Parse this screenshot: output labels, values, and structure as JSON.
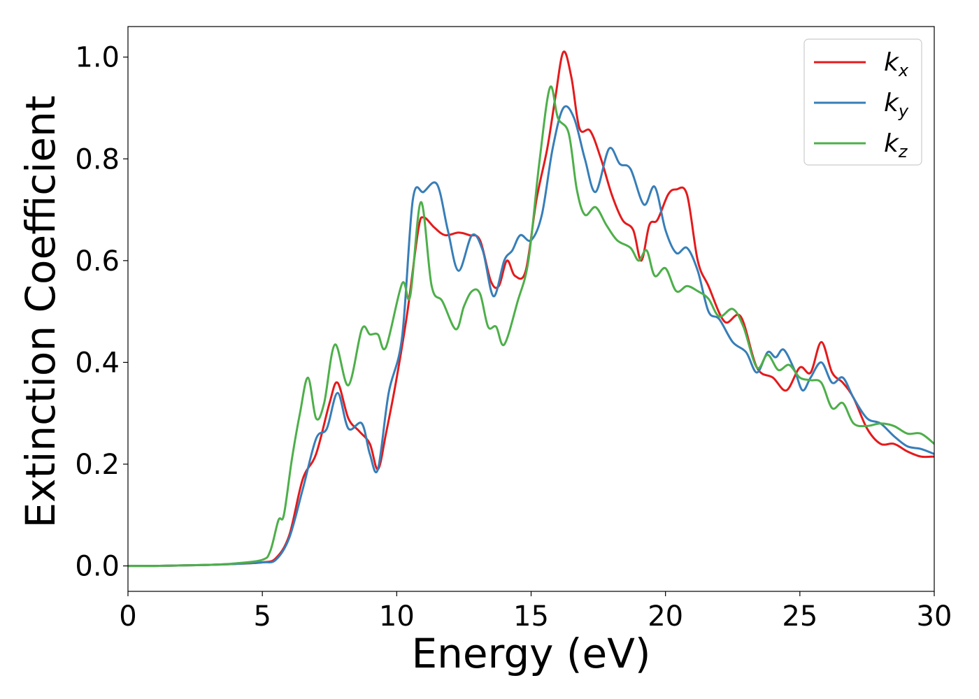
{
  "chart_data": {
    "type": "line",
    "title": "",
    "xlabel": "Energy (eV)",
    "ylabel": "Extinction Coefficient",
    "xlim": [
      0,
      30
    ],
    "ylim": [
      -0.05,
      1.06
    ],
    "xticks": [
      0,
      5,
      10,
      15,
      20,
      25,
      30
    ],
    "xtick_labels": [
      "0",
      "5",
      "10",
      "15",
      "20",
      "25",
      "30"
    ],
    "yticks": [
      0.0,
      0.2,
      0.4,
      0.6,
      0.8,
      1.0
    ],
    "ytick_labels": [
      "0.0",
      "0.2",
      "0.4",
      "0.6",
      "0.8",
      "1.0"
    ],
    "grid": false,
    "legend_position": "top-right",
    "series": [
      {
        "name": "k_x",
        "label_main": "k",
        "label_sub": "x",
        "color": "#e41a1c",
        "points": [
          [
            0,
            0
          ],
          [
            1,
            0
          ],
          [
            2,
            0.001
          ],
          [
            3,
            0.002
          ],
          [
            4,
            0.004
          ],
          [
            5,
            0.007
          ],
          [
            5.5,
            0.015
          ],
          [
            6,
            0.06
          ],
          [
            6.5,
            0.17
          ],
          [
            7,
            0.22
          ],
          [
            7.5,
            0.32
          ],
          [
            7.8,
            0.36
          ],
          [
            8.2,
            0.29
          ],
          [
            8.6,
            0.265
          ],
          [
            9,
            0.24
          ],
          [
            9.3,
            0.19
          ],
          [
            9.6,
            0.26
          ],
          [
            10,
            0.37
          ],
          [
            10.4,
            0.5
          ],
          [
            10.8,
            0.66
          ],
          [
            11,
            0.685
          ],
          [
            11.4,
            0.665
          ],
          [
            11.8,
            0.65
          ],
          [
            12.3,
            0.655
          ],
          [
            12.7,
            0.65
          ],
          [
            13.1,
            0.64
          ],
          [
            13.5,
            0.56
          ],
          [
            13.8,
            0.55
          ],
          [
            14.1,
            0.6
          ],
          [
            14.4,
            0.57
          ],
          [
            14.8,
            0.58
          ],
          [
            15.2,
            0.72
          ],
          [
            15.6,
            0.82
          ],
          [
            15.9,
            0.92
          ],
          [
            16.2,
            1.01
          ],
          [
            16.5,
            0.96
          ],
          [
            16.8,
            0.86
          ],
          [
            17.2,
            0.855
          ],
          [
            17.6,
            0.8
          ],
          [
            18,
            0.73
          ],
          [
            18.4,
            0.68
          ],
          [
            18.8,
            0.66
          ],
          [
            19.1,
            0.6
          ],
          [
            19.4,
            0.67
          ],
          [
            19.7,
            0.68
          ],
          [
            20.1,
            0.73
          ],
          [
            20.4,
            0.74
          ],
          [
            20.8,
            0.73
          ],
          [
            21.2,
            0.6
          ],
          [
            21.6,
            0.55
          ],
          [
            22.2,
            0.48
          ],
          [
            22.8,
            0.49
          ],
          [
            23.4,
            0.39
          ],
          [
            24,
            0.37
          ],
          [
            24.5,
            0.345
          ],
          [
            25,
            0.39
          ],
          [
            25.4,
            0.38
          ],
          [
            25.8,
            0.44
          ],
          [
            26.2,
            0.38
          ],
          [
            26.6,
            0.36
          ],
          [
            27,
            0.33
          ],
          [
            27.5,
            0.27
          ],
          [
            28,
            0.24
          ],
          [
            28.5,
            0.24
          ],
          [
            29,
            0.225
          ],
          [
            29.5,
            0.215
          ],
          [
            30,
            0.215
          ]
        ]
      },
      {
        "name": "k_y",
        "label_main": "k",
        "label_sub": "y",
        "color": "#377eb8",
        "points": [
          [
            0,
            0
          ],
          [
            1,
            0
          ],
          [
            2,
            0.001
          ],
          [
            3,
            0.002
          ],
          [
            4,
            0.004
          ],
          [
            5,
            0.007
          ],
          [
            5.5,
            0.012
          ],
          [
            6,
            0.055
          ],
          [
            6.5,
            0.15
          ],
          [
            7,
            0.25
          ],
          [
            7.4,
            0.27
          ],
          [
            7.8,
            0.34
          ],
          [
            8.2,
            0.27
          ],
          [
            8.7,
            0.28
          ],
          [
            9,
            0.22
          ],
          [
            9.3,
            0.19
          ],
          [
            9.7,
            0.34
          ],
          [
            10.2,
            0.45
          ],
          [
            10.6,
            0.72
          ],
          [
            11,
            0.735
          ],
          [
            11.5,
            0.75
          ],
          [
            11.9,
            0.66
          ],
          [
            12.3,
            0.58
          ],
          [
            12.8,
            0.65
          ],
          [
            13.2,
            0.62
          ],
          [
            13.6,
            0.53
          ],
          [
            14,
            0.6
          ],
          [
            14.3,
            0.62
          ],
          [
            14.6,
            0.65
          ],
          [
            15,
            0.64
          ],
          [
            15.4,
            0.69
          ],
          [
            15.8,
            0.82
          ],
          [
            16.2,
            0.9
          ],
          [
            16.6,
            0.88
          ],
          [
            17,
            0.8
          ],
          [
            17.4,
            0.735
          ],
          [
            17.9,
            0.82
          ],
          [
            18.3,
            0.79
          ],
          [
            18.7,
            0.78
          ],
          [
            19.2,
            0.71
          ],
          [
            19.6,
            0.745
          ],
          [
            20,
            0.66
          ],
          [
            20.4,
            0.615
          ],
          [
            20.8,
            0.625
          ],
          [
            21.2,
            0.58
          ],
          [
            21.6,
            0.5
          ],
          [
            22,
            0.485
          ],
          [
            22.5,
            0.44
          ],
          [
            23,
            0.42
          ],
          [
            23.4,
            0.38
          ],
          [
            23.8,
            0.42
          ],
          [
            24.1,
            0.41
          ],
          [
            24.4,
            0.425
          ],
          [
            24.8,
            0.385
          ],
          [
            25.1,
            0.345
          ],
          [
            25.4,
            0.37
          ],
          [
            25.8,
            0.4
          ],
          [
            26.2,
            0.36
          ],
          [
            26.6,
            0.37
          ],
          [
            27,
            0.33
          ],
          [
            27.5,
            0.29
          ],
          [
            28,
            0.28
          ],
          [
            28.5,
            0.255
          ],
          [
            29,
            0.235
          ],
          [
            29.5,
            0.23
          ],
          [
            30,
            0.22
          ]
        ]
      },
      {
        "name": "k_z",
        "label_main": "k",
        "label_sub": "z",
        "color": "#4daf4a",
        "points": [
          [
            0,
            0
          ],
          [
            1,
            0
          ],
          [
            2,
            0.001
          ],
          [
            3,
            0.002
          ],
          [
            4,
            0.005
          ],
          [
            5,
            0.012
          ],
          [
            5.3,
            0.03
          ],
          [
            5.6,
            0.09
          ],
          [
            5.8,
            0.1
          ],
          [
            6.1,
            0.21
          ],
          [
            6.4,
            0.3
          ],
          [
            6.7,
            0.37
          ],
          [
            7,
            0.29
          ],
          [
            7.3,
            0.32
          ],
          [
            7.7,
            0.435
          ],
          [
            8.2,
            0.355
          ],
          [
            8.7,
            0.465
          ],
          [
            9,
            0.455
          ],
          [
            9.3,
            0.455
          ],
          [
            9.6,
            0.43
          ],
          [
            10.2,
            0.555
          ],
          [
            10.5,
            0.53
          ],
          [
            10.9,
            0.715
          ],
          [
            11.3,
            0.55
          ],
          [
            11.7,
            0.52
          ],
          [
            12.2,
            0.465
          ],
          [
            12.5,
            0.51
          ],
          [
            12.8,
            0.54
          ],
          [
            13.1,
            0.535
          ],
          [
            13.4,
            0.47
          ],
          [
            13.7,
            0.47
          ],
          [
            14,
            0.435
          ],
          [
            14.5,
            0.52
          ],
          [
            14.9,
            0.6
          ],
          [
            15.3,
            0.79
          ],
          [
            15.7,
            0.94
          ],
          [
            16,
            0.88
          ],
          [
            16.4,
            0.85
          ],
          [
            16.7,
            0.74
          ],
          [
            17,
            0.69
          ],
          [
            17.4,
            0.705
          ],
          [
            17.8,
            0.67
          ],
          [
            18.2,
            0.64
          ],
          [
            18.7,
            0.625
          ],
          [
            19,
            0.6
          ],
          [
            19.3,
            0.62
          ],
          [
            19.6,
            0.57
          ],
          [
            20,
            0.585
          ],
          [
            20.4,
            0.54
          ],
          [
            20.8,
            0.55
          ],
          [
            21.2,
            0.54
          ],
          [
            21.6,
            0.525
          ],
          [
            22,
            0.49
          ],
          [
            22.5,
            0.505
          ],
          [
            22.9,
            0.47
          ],
          [
            23.4,
            0.39
          ],
          [
            23.8,
            0.415
          ],
          [
            24.2,
            0.385
          ],
          [
            24.6,
            0.395
          ],
          [
            25,
            0.37
          ],
          [
            25.4,
            0.365
          ],
          [
            25.8,
            0.36
          ],
          [
            26.2,
            0.31
          ],
          [
            26.6,
            0.32
          ],
          [
            27,
            0.28
          ],
          [
            27.5,
            0.275
          ],
          [
            28,
            0.28
          ],
          [
            28.5,
            0.275
          ],
          [
            29,
            0.26
          ],
          [
            29.5,
            0.26
          ],
          [
            30,
            0.24
          ]
        ]
      }
    ]
  }
}
